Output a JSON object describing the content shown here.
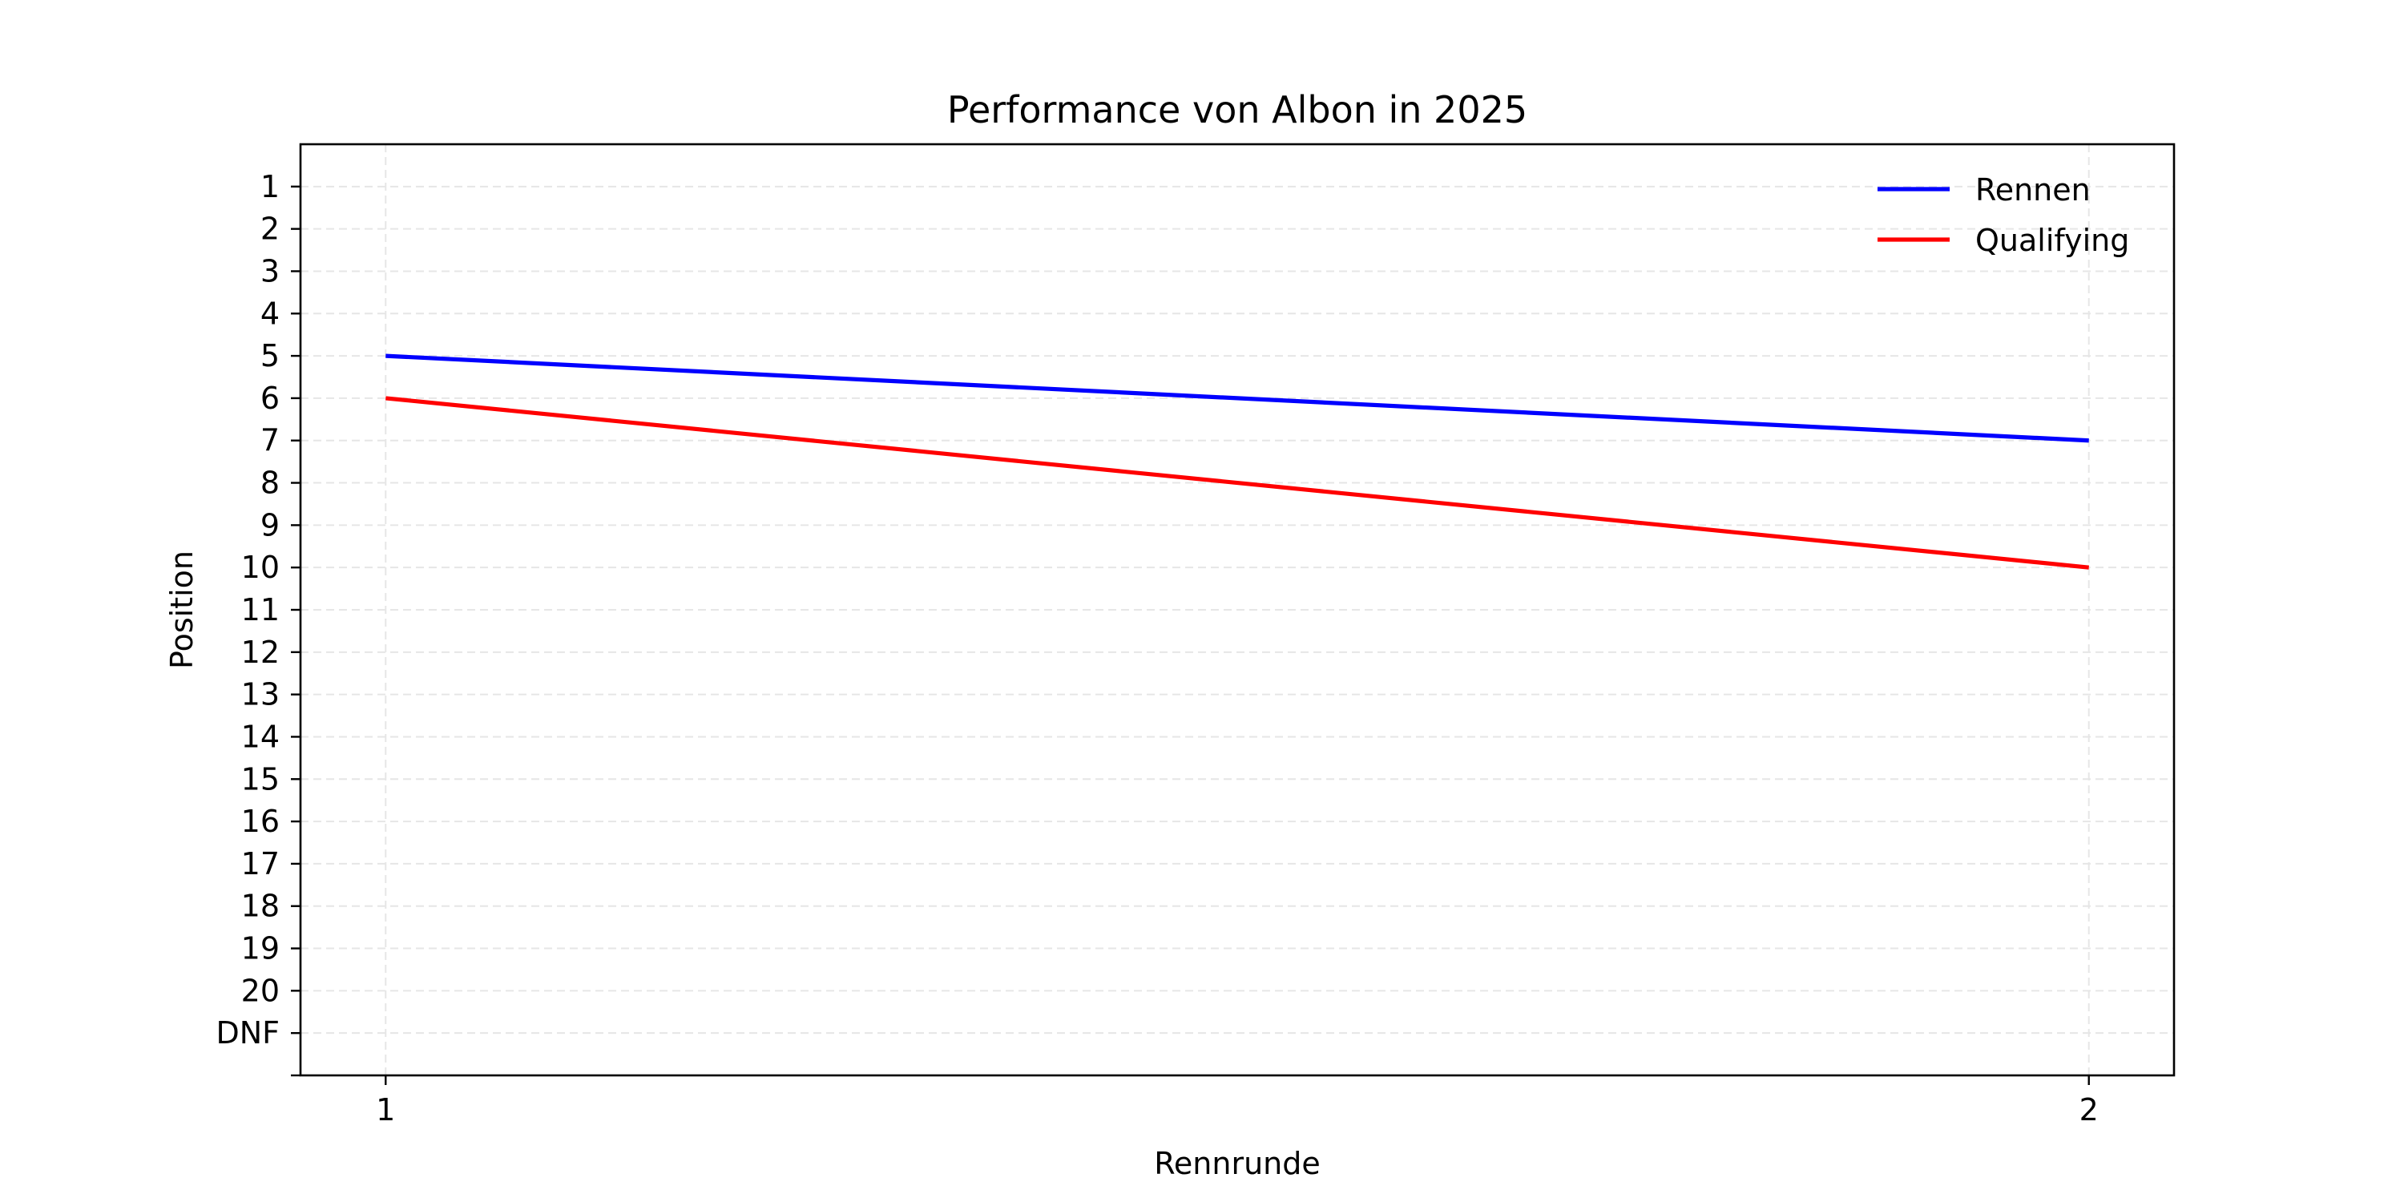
{
  "chart_data": {
    "type": "line",
    "title": "Performance von Albon in 2025",
    "xlabel": "Rennrunde",
    "ylabel": "Position",
    "x": [
      1,
      2
    ],
    "x_tick_labels": [
      "1",
      "2"
    ],
    "y_tick_labels": [
      "1",
      "2",
      "3",
      "4",
      "5",
      "6",
      "7",
      "8",
      "9",
      "10",
      "11",
      "12",
      "13",
      "14",
      "15",
      "16",
      "17",
      "18",
      "19",
      "20",
      "DNF"
    ],
    "y_tick_values": [
      1,
      2,
      3,
      4,
      5,
      6,
      7,
      8,
      9,
      10,
      11,
      12,
      13,
      14,
      15,
      16,
      17,
      18,
      19,
      20,
      21
    ],
    "xlim": [
      0.95,
      2.05
    ],
    "ylim": [
      22,
      0
    ],
    "y_inverted": true,
    "grid": true,
    "grid_style": "dashed",
    "legend_position": "top-right",
    "series": [
      {
        "name": "Rennen",
        "values": [
          5,
          7
        ],
        "color": "#0000ff"
      },
      {
        "name": "Qualifying",
        "values": [
          6,
          10
        ],
        "color": "#ff0000"
      }
    ]
  }
}
